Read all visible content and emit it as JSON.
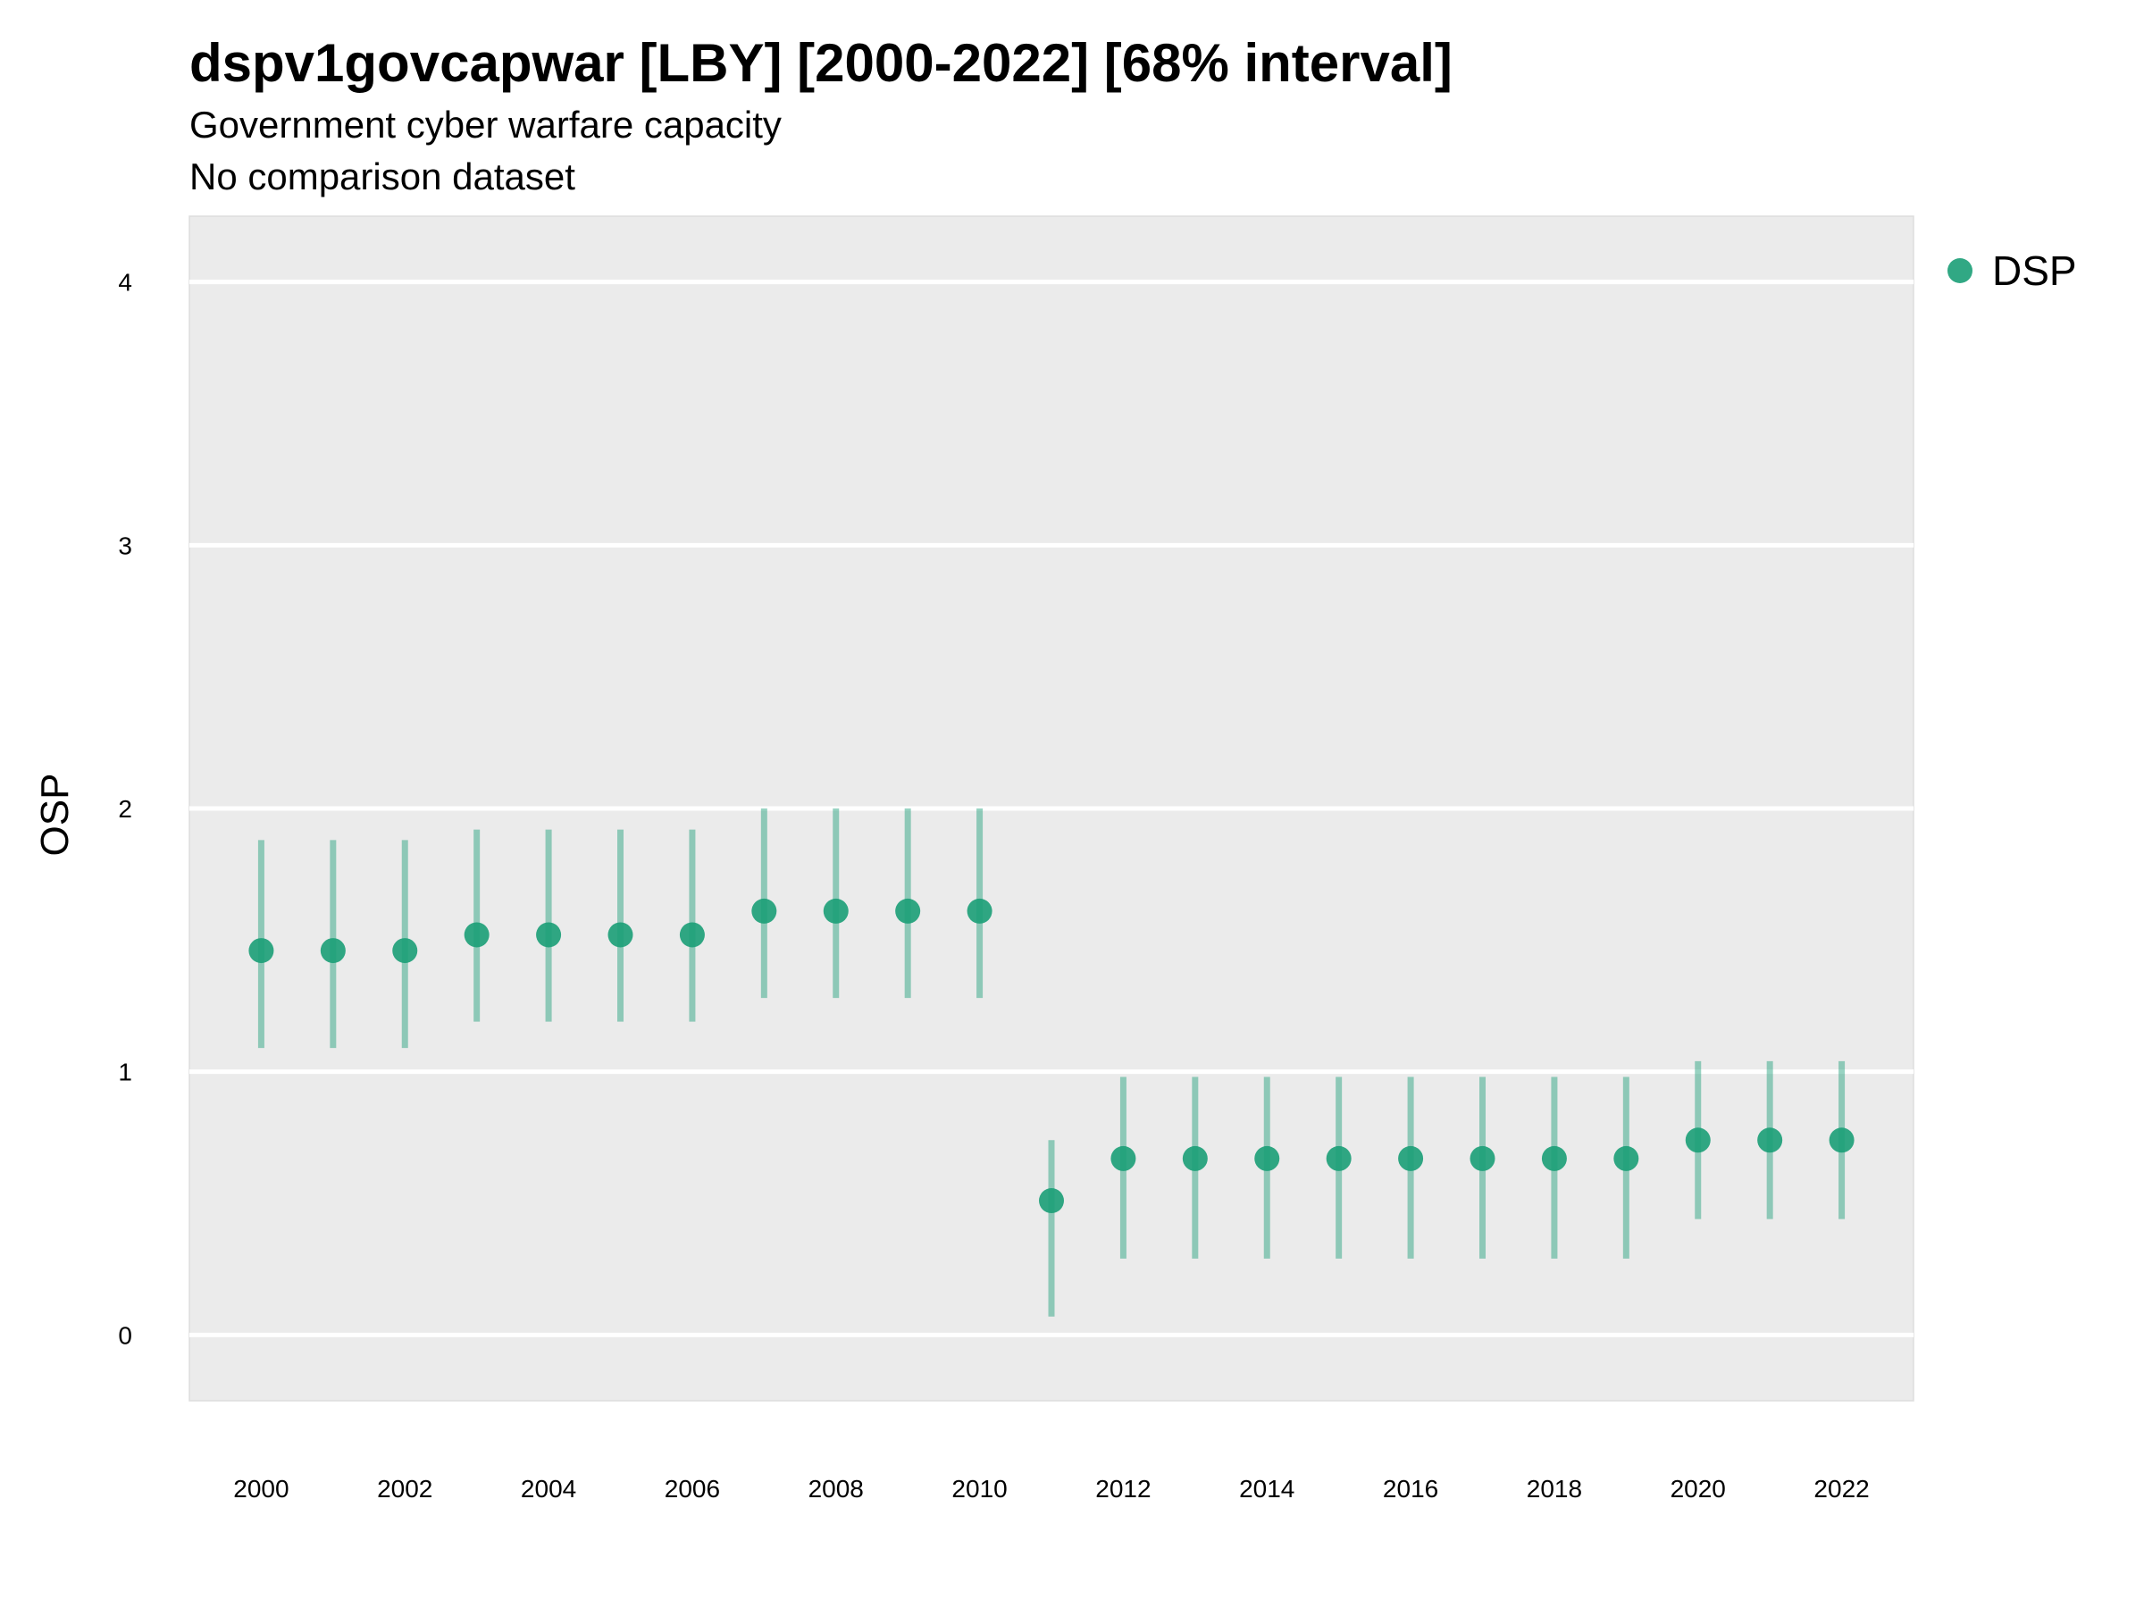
{
  "chart_data": {
    "type": "scatter",
    "title": "dspv1govcapwar [LBY] [2000-2022] [68% interval]",
    "subtitle": "Government cyber warfare capacity",
    "caption": "No comparison dataset",
    "xlabel": "",
    "ylabel": "OSP",
    "xlim": [
      1999,
      2023
    ],
    "ylim": [
      -0.25,
      4.25
    ],
    "x_ticks": [
      2000,
      2002,
      2004,
      2006,
      2008,
      2010,
      2012,
      2014,
      2016,
      2018,
      2020,
      2022
    ],
    "y_ticks": [
      0,
      1,
      2,
      3,
      4
    ],
    "grid": true,
    "legend_position": "right",
    "series": [
      {
        "name": "DSP",
        "color": "#1b9e77",
        "x": [
          2000,
          2001,
          2002,
          2003,
          2004,
          2005,
          2006,
          2007,
          2008,
          2009,
          2010,
          2011,
          2012,
          2013,
          2014,
          2015,
          2016,
          2017,
          2018,
          2019,
          2020,
          2021,
          2022
        ],
        "y": [
          1.46,
          1.46,
          1.46,
          1.52,
          1.52,
          1.52,
          1.52,
          1.61,
          1.61,
          1.61,
          1.61,
          0.51,
          0.67,
          0.67,
          0.67,
          0.67,
          0.67,
          0.67,
          0.67,
          0.67,
          0.74,
          0.74,
          0.74
        ],
        "lower": [
          1.09,
          1.09,
          1.09,
          1.19,
          1.19,
          1.19,
          1.19,
          1.28,
          1.28,
          1.28,
          1.28,
          0.07,
          0.29,
          0.29,
          0.29,
          0.29,
          0.29,
          0.29,
          0.29,
          0.29,
          0.44,
          0.44,
          0.44
        ],
        "upper": [
          1.88,
          1.88,
          1.88,
          1.92,
          1.92,
          1.92,
          1.92,
          2.0,
          2.0,
          2.0,
          2.0,
          0.74,
          0.98,
          0.98,
          0.98,
          0.98,
          0.98,
          0.98,
          0.98,
          0.98,
          1.04,
          1.04,
          1.04
        ]
      }
    ]
  }
}
